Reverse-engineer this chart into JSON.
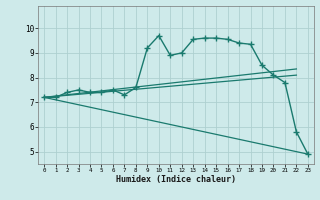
{
  "xlabel": "Humidex (Indice chaleur)",
  "background_color": "#ceeaea",
  "grid_color": "#aed0d0",
  "line_color": "#1a7a6e",
  "xlim": [
    -0.5,
    23.5
  ],
  "ylim": [
    4.5,
    10.9
  ],
  "yticks": [
    5,
    6,
    7,
    8,
    9,
    10
  ],
  "xticks": [
    0,
    1,
    2,
    3,
    4,
    5,
    6,
    7,
    8,
    9,
    10,
    11,
    12,
    13,
    14,
    15,
    16,
    17,
    18,
    19,
    20,
    21,
    22,
    23
  ],
  "series": [
    {
      "x": [
        0,
        1,
        2,
        3,
        4,
        5,
        6,
        7,
        8,
        9,
        10,
        11,
        12,
        13,
        14,
        15,
        16,
        17,
        18,
        19,
        20,
        21,
        22,
        23
      ],
      "y": [
        7.2,
        7.2,
        7.4,
        7.5,
        7.4,
        7.4,
        7.5,
        7.3,
        7.6,
        9.2,
        9.7,
        8.9,
        9.0,
        9.55,
        9.6,
        9.6,
        9.55,
        9.4,
        9.35,
        8.5,
        8.1,
        7.8,
        5.8,
        4.9
      ],
      "marker": "+",
      "linestyle": "-",
      "linewidth": 1.0,
      "markersize": 4
    },
    {
      "x": [
        0,
        22
      ],
      "y": [
        7.2,
        8.35
      ],
      "marker": null,
      "linestyle": "-",
      "linewidth": 0.9,
      "markersize": 0
    },
    {
      "x": [
        0,
        22
      ],
      "y": [
        7.2,
        8.1
      ],
      "marker": null,
      "linestyle": "-",
      "linewidth": 0.9,
      "markersize": 0
    },
    {
      "x": [
        0,
        23
      ],
      "y": [
        7.2,
        4.9
      ],
      "marker": null,
      "linestyle": "-",
      "linewidth": 0.9,
      "markersize": 0
    }
  ]
}
